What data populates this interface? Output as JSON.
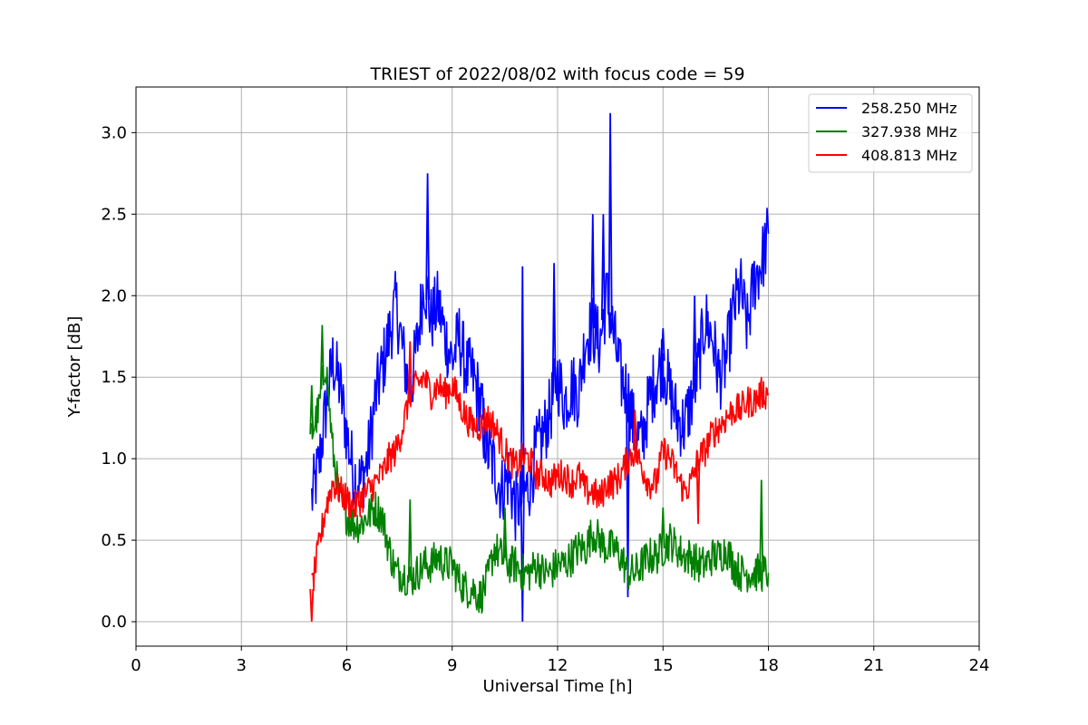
{
  "chart_data": {
    "type": "line",
    "title": "TRIEST of 2022/08/02 with focus code = 59",
    "xlabel": "Universal Time [h]",
    "ylabel": "Y-factor [dB]",
    "xlim": [
      0,
      24
    ],
    "ylim": [
      -0.15,
      3.28
    ],
    "xticks": [
      0,
      3,
      6,
      9,
      12,
      15,
      18,
      21,
      24
    ],
    "yticks": [
      0.0,
      0.5,
      1.0,
      1.5,
      2.0,
      2.5,
      3.0
    ],
    "grid": true,
    "legend_position": "top-right",
    "series": [
      {
        "name": "258.250 MHz",
        "color": "#0000ff",
        "x": [
          5.0,
          5.2,
          5.4,
          5.6,
          5.8,
          6.0,
          6.2,
          6.4,
          6.6,
          6.8,
          7.0,
          7.2,
          7.4,
          7.6,
          7.8,
          8.0,
          8.2,
          8.4,
          8.6,
          8.8,
          9.0,
          9.2,
          9.4,
          9.6,
          9.8,
          10.0,
          10.2,
          10.4,
          10.6,
          10.8,
          11.0,
          11.2,
          11.4,
          11.6,
          11.8,
          12.0,
          12.2,
          12.4,
          12.6,
          12.8,
          13.0,
          13.2,
          13.4,
          13.6,
          13.8,
          14.0,
          14.2,
          14.4,
          14.6,
          14.8,
          15.0,
          15.2,
          15.4,
          15.6,
          15.8,
          16.0,
          16.2,
          16.4,
          16.6,
          16.8,
          17.0,
          17.2,
          17.4,
          17.6,
          17.8,
          18.0
        ],
        "y": [
          0.75,
          0.95,
          1.3,
          1.6,
          1.45,
          1.15,
          0.9,
          0.85,
          1.0,
          1.35,
          1.55,
          1.75,
          1.95,
          1.65,
          1.4,
          1.7,
          2.1,
          1.85,
          1.95,
          1.75,
          1.6,
          1.75,
          1.55,
          1.5,
          1.35,
          1.05,
          0.95,
          0.8,
          0.9,
          0.7,
          0.75,
          0.85,
          1.05,
          1.15,
          1.3,
          1.5,
          1.35,
          1.45,
          1.4,
          1.75,
          1.8,
          1.7,
          2.0,
          1.75,
          1.5,
          1.4,
          1.15,
          1.1,
          1.35,
          1.5,
          1.6,
          1.4,
          1.25,
          1.2,
          1.35,
          1.55,
          1.85,
          1.75,
          1.5,
          1.6,
          1.9,
          2.05,
          1.8,
          2.1,
          2.2,
          2.38
        ],
        "spikes": [
          [
            8.3,
            2.75
          ],
          [
            9.9,
            1.0
          ],
          [
            11.0,
            2.18
          ],
          [
            11.0,
            0.0
          ],
          [
            11.9,
            2.2
          ],
          [
            13.0,
            2.5
          ],
          [
            13.5,
            3.12
          ],
          [
            14.0,
            0.15
          ],
          [
            15.0,
            1.8
          ],
          [
            15.9,
            2.0
          ],
          [
            13.3,
            2.5
          ]
        ]
      },
      {
        "name": "327.938 MHz",
        "color": "#008000",
        "x": [
          5.0,
          5.2,
          5.4,
          5.6,
          5.8,
          6.0,
          6.2,
          6.4,
          6.6,
          6.8,
          7.0,
          7.2,
          7.4,
          7.6,
          7.8,
          8.0,
          8.2,
          8.4,
          8.6,
          8.8,
          9.0,
          9.2,
          9.4,
          9.6,
          9.8,
          10.0,
          10.2,
          10.4,
          10.6,
          10.8,
          11.0,
          11.2,
          11.4,
          11.6,
          11.8,
          12.0,
          12.2,
          12.4,
          12.6,
          12.8,
          13.0,
          13.2,
          13.4,
          13.6,
          13.8,
          14.0,
          14.2,
          14.4,
          14.6,
          14.8,
          15.0,
          15.2,
          15.4,
          15.6,
          15.8,
          16.0,
          16.2,
          16.4,
          16.6,
          16.8,
          17.0,
          17.2,
          17.4,
          17.6,
          17.8,
          18.0
        ],
        "y": [
          1.15,
          1.3,
          1.6,
          1.05,
          0.75,
          0.65,
          0.6,
          0.6,
          0.65,
          0.7,
          0.65,
          0.45,
          0.3,
          0.3,
          0.25,
          0.3,
          0.35,
          0.35,
          0.4,
          0.35,
          0.35,
          0.25,
          0.2,
          0.2,
          0.15,
          0.25,
          0.45,
          0.4,
          0.35,
          0.35,
          0.3,
          0.3,
          0.35,
          0.3,
          0.3,
          0.35,
          0.35,
          0.4,
          0.45,
          0.45,
          0.55,
          0.5,
          0.45,
          0.45,
          0.4,
          0.3,
          0.3,
          0.35,
          0.4,
          0.4,
          0.45,
          0.5,
          0.45,
          0.4,
          0.4,
          0.35,
          0.35,
          0.4,
          0.4,
          0.45,
          0.35,
          0.3,
          0.3,
          0.3,
          0.3,
          0.3
        ],
        "spikes": [
          [
            5.0,
            1.45
          ],
          [
            5.3,
            1.82
          ],
          [
            7.8,
            0.75
          ],
          [
            10.5,
            0.7
          ],
          [
            11.0,
            0.2
          ],
          [
            17.8,
            0.87
          ],
          [
            15.0,
            0.7
          ]
        ]
      },
      {
        "name": "408.813 MHz",
        "color": "#ff0000",
        "x": [
          5.0,
          5.2,
          5.4,
          5.6,
          5.8,
          6.0,
          6.2,
          6.4,
          6.6,
          6.8,
          7.0,
          7.2,
          7.4,
          7.6,
          7.8,
          8.0,
          8.2,
          8.4,
          8.6,
          8.8,
          9.0,
          9.2,
          9.4,
          9.6,
          9.8,
          10.0,
          10.2,
          10.4,
          10.6,
          10.8,
          11.0,
          11.2,
          11.4,
          11.6,
          11.8,
          12.0,
          12.2,
          12.4,
          12.6,
          12.8,
          13.0,
          13.2,
          13.4,
          13.6,
          13.8,
          14.0,
          14.2,
          14.4,
          14.6,
          14.8,
          15.0,
          15.2,
          15.4,
          15.6,
          15.8,
          16.0,
          16.2,
          16.4,
          16.6,
          16.8,
          17.0,
          17.2,
          17.4,
          17.6,
          17.8,
          18.0
        ],
        "y": [
          0.2,
          0.45,
          0.7,
          0.85,
          0.8,
          0.75,
          0.7,
          0.75,
          0.8,
          0.85,
          0.9,
          1.0,
          1.05,
          1.2,
          1.4,
          1.45,
          1.5,
          1.4,
          1.45,
          1.4,
          1.45,
          1.35,
          1.25,
          1.2,
          1.2,
          1.25,
          1.2,
          1.1,
          1.0,
          0.95,
          1.0,
          1.0,
          0.9,
          0.9,
          0.85,
          0.9,
          0.9,
          0.85,
          0.9,
          0.8,
          0.8,
          0.75,
          0.85,
          0.85,
          0.9,
          1.0,
          1.05,
          0.95,
          0.85,
          0.85,
          1.05,
          1.0,
          0.9,
          0.8,
          0.85,
          1.0,
          1.05,
          1.15,
          1.2,
          1.25,
          1.3,
          1.3,
          1.35,
          1.35,
          1.4,
          1.4
        ],
        "spikes": [
          [
            5.0,
            0.0
          ],
          [
            7.8,
            1.72
          ],
          [
            14.2,
            1.3
          ],
          [
            16.0,
            0.6
          ]
        ]
      }
    ]
  }
}
